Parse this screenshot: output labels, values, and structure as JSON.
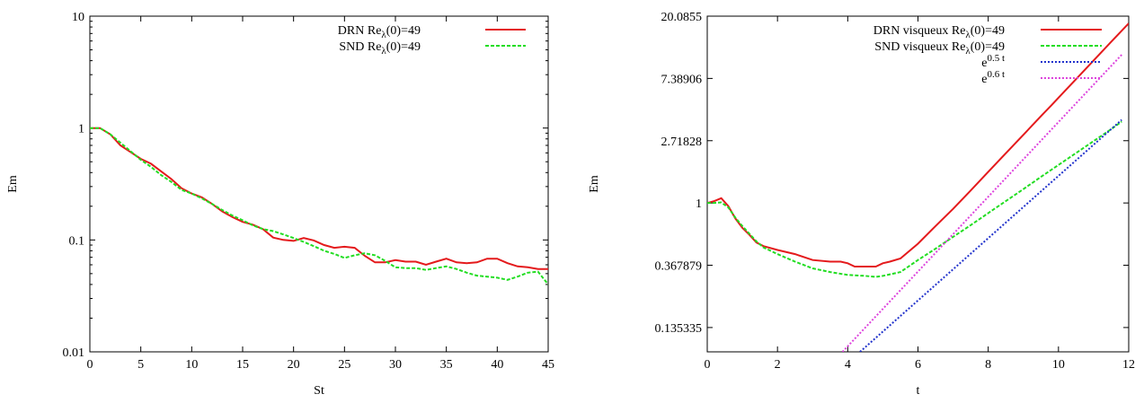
{
  "chart_data": [
    {
      "type": "line",
      "xlabel": "St",
      "ylabel": "Em",
      "xlim": [
        0,
        45
      ],
      "ylim": [
        0.01,
        10
      ],
      "yscale": "log",
      "grid": false,
      "legend_position": "top-right",
      "xticks": [
        "0",
        "5",
        "10",
        "15",
        "20",
        "25",
        "30",
        "35",
        "40",
        "45"
      ],
      "yticks": [
        "0.01",
        "0.1",
        "1",
        "10"
      ],
      "series": [
        {
          "name": "DRN Reλ(0)=49",
          "name_base": "DRN Re",
          "name_sub": "λ",
          "name_rest": "(0)=49",
          "color": "#e41a1c",
          "dash": "solid",
          "x": [
            0,
            1,
            2,
            3,
            4,
            5,
            6,
            7,
            8,
            9,
            10,
            11,
            12,
            13,
            14,
            15,
            16,
            17,
            18,
            19,
            20,
            21,
            22,
            23,
            24,
            25,
            26,
            27,
            28,
            29,
            30,
            31,
            32,
            33,
            34,
            35,
            36,
            37,
            38,
            39,
            40,
            41,
            42,
            43,
            44,
            45
          ],
          "y": [
            1.0,
            1.0,
            0.88,
            0.7,
            0.61,
            0.53,
            0.48,
            0.41,
            0.35,
            0.29,
            0.26,
            0.24,
            0.21,
            0.18,
            0.16,
            0.145,
            0.137,
            0.125,
            0.105,
            0.1,
            0.098,
            0.104,
            0.099,
            0.09,
            0.085,
            0.087,
            0.085,
            0.072,
            0.063,
            0.063,
            0.066,
            0.064,
            0.064,
            0.06,
            0.064,
            0.068,
            0.063,
            0.062,
            0.063,
            0.068,
            0.068,
            0.062,
            0.058,
            0.057,
            0.055,
            0.055
          ]
        },
        {
          "name": "SND Reλ(0)=49",
          "name_base": "SND Re",
          "name_sub": "λ",
          "name_rest": "(0)=49",
          "color": "#22dd22",
          "dash": "dashed",
          "x": [
            0,
            1,
            2,
            3,
            4,
            5,
            6,
            7,
            8,
            9,
            10,
            11,
            12,
            13,
            14,
            15,
            16,
            17,
            18,
            19,
            20,
            21,
            22,
            23,
            24,
            25,
            26,
            27,
            28,
            29,
            30,
            31,
            32,
            33,
            34,
            35,
            36,
            37,
            38,
            39,
            40,
            41,
            42,
            43,
            44,
            45
          ],
          "y": [
            1.0,
            1.0,
            0.88,
            0.74,
            0.62,
            0.52,
            0.45,
            0.38,
            0.33,
            0.28,
            0.26,
            0.235,
            0.21,
            0.185,
            0.165,
            0.15,
            0.135,
            0.125,
            0.12,
            0.112,
            0.104,
            0.096,
            0.088,
            0.08,
            0.075,
            0.069,
            0.073,
            0.076,
            0.073,
            0.065,
            0.057,
            0.056,
            0.056,
            0.054,
            0.056,
            0.058,
            0.055,
            0.051,
            0.048,
            0.047,
            0.046,
            0.044,
            0.047,
            0.051,
            0.052,
            0.04
          ]
        }
      ]
    },
    {
      "type": "line",
      "xlabel": "t",
      "ylabel": "Em",
      "xlim": [
        0,
        12
      ],
      "ylim": [
        0.0915781944,
        20.0855
      ],
      "yscale": "log",
      "grid": false,
      "legend_position": "top-right",
      "xticks": [
        "0",
        "2",
        "4",
        "6",
        "8",
        "10",
        "12"
      ],
      "yticks": [
        "0.135335",
        "0.367879",
        "1",
        "2.71828",
        "7.38906",
        "20.0855"
      ],
      "series": [
        {
          "name": "DRN visqueux Reλ(0)=49",
          "name_base": "DRN visqueux Re",
          "name_sub": "λ",
          "name_rest": "(0)=49",
          "color": "#e41a1c",
          "dash": "solid",
          "x": [
            0,
            0.2,
            0.4,
            0.6,
            0.8,
            1.0,
            1.2,
            1.4,
            1.6,
            2.0,
            2.5,
            3.0,
            3.5,
            3.8,
            4.0,
            4.2,
            4.5,
            4.8,
            5.0,
            5.2,
            5.5,
            6.0,
            6.5,
            7.0,
            7.5,
            8.0,
            8.5,
            9.0,
            9.5,
            9.8,
            10.0,
            10.5,
            11.0,
            11.5,
            12.0
          ],
          "y": [
            1.0,
            1.03,
            1.08,
            0.95,
            0.78,
            0.67,
            0.6,
            0.53,
            0.5,
            0.47,
            0.44,
            0.4,
            0.39,
            0.39,
            0.38,
            0.36,
            0.36,
            0.36,
            0.38,
            0.39,
            0.41,
            0.52,
            0.69,
            0.91,
            1.22,
            1.65,
            2.22,
            2.99,
            4.03,
            4.8,
            5.42,
            7.3,
            9.85,
            13.3,
            17.9
          ]
        },
        {
          "name": "SND visqueux Reλ(0)=49",
          "name_base": "SND visqueux Re",
          "name_sub": "λ",
          "name_rest": "(0)=49",
          "color": "#22dd22",
          "dash": "dashed",
          "x": [
            0,
            0.2,
            0.4,
            0.6,
            0.8,
            1.0,
            1.2,
            1.4,
            1.6,
            2.0,
            2.5,
            3.0,
            3.5,
            4.0,
            4.5,
            4.8,
            5.0,
            5.5,
            6.0,
            6.5,
            7.0,
            7.5,
            8.0,
            8.5,
            9.0,
            9.5,
            10.0,
            10.5,
            11.0,
            11.5,
            11.8
          ],
          "y": [
            1.0,
            1.0,
            1.01,
            0.93,
            0.79,
            0.69,
            0.61,
            0.54,
            0.49,
            0.44,
            0.39,
            0.35,
            0.33,
            0.315,
            0.31,
            0.305,
            0.31,
            0.33,
            0.4,
            0.48,
            0.58,
            0.7,
            0.85,
            1.03,
            1.25,
            1.52,
            1.84,
            2.23,
            2.7,
            3.27,
            3.7
          ]
        },
        {
          "name": "e^{0.5 t}",
          "name_base": "e",
          "name_sup": "0.5 t",
          "color": "#2233cc",
          "dash": "dotted",
          "x": [
            4.35,
            11.8
          ],
          "y": [
            0.0916,
            3.8
          ]
        },
        {
          "name": "e^{0.6 t}",
          "name_base": "e",
          "name_sup": "0.6 t",
          "color": "#dd44dd",
          "dash": "dotted",
          "x": [
            3.85,
            11.8
          ],
          "y": [
            0.0916,
            10.8
          ]
        }
      ]
    }
  ]
}
